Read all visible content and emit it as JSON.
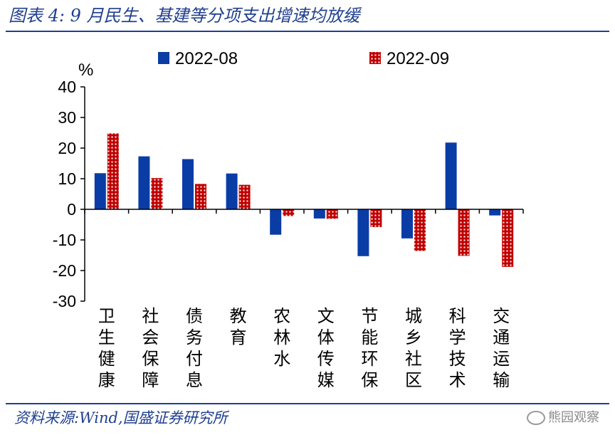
{
  "header": {
    "title": "图表 4:  9 月民生、基建等分项支出增速均放缓"
  },
  "footer": {
    "source": "资料来源:Wind,国盛证券研究所",
    "watermark": "熊园观察"
  },
  "colors": {
    "series1": "#0a3ca6",
    "series2": "#c00000",
    "rule": "#1f3f8f"
  },
  "chart_data": {
    "type": "bar",
    "ylabel": "%",
    "ylim": [
      -30,
      40
    ],
    "yticks": [
      40,
      30,
      20,
      10,
      0,
      -10,
      -20,
      -30
    ],
    "legend_position": "top",
    "grid": false,
    "categories": [
      "卫生健康",
      "社会保障",
      "债务付息",
      "教育",
      "农林水",
      "文体传媒",
      "节能环保",
      "城乡社区",
      "科学技术",
      "交通运输"
    ],
    "series": [
      {
        "name": "2022-08",
        "values": [
          11.8,
          17.3,
          16.4,
          11.7,
          -8.3,
          -3.0,
          -15.3,
          -9.5,
          21.8,
          -2.0
        ]
      },
      {
        "name": "2022-09",
        "values": [
          24.8,
          10.2,
          8.3,
          8.0,
          -2.2,
          -3.1,
          -5.8,
          -13.6,
          -15.2,
          -18.8
        ]
      }
    ]
  }
}
